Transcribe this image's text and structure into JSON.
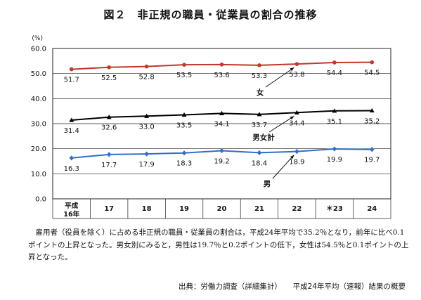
{
  "title": "図２　非正規の職員・従業員の割合の推移",
  "chart_data": {
    "type": "line",
    "ylabel": "(%)",
    "ylim": [
      0,
      60
    ],
    "yticks": [
      "0.0",
      "10.0",
      "20.0",
      "30.0",
      "40.0",
      "50.0",
      "60.0"
    ],
    "grid": true,
    "categories": [
      "平成\n16年",
      "17",
      "18",
      "19",
      "20",
      "21",
      "22",
      "＊23",
      "24"
    ],
    "series": [
      {
        "name": "女",
        "color": "#c0392b",
        "marker": "circle",
        "values": [
          51.7,
          52.5,
          52.8,
          53.5,
          53.6,
          53.3,
          53.8,
          54.4,
          54.5
        ],
        "labels": [
          "51.7",
          "52.5",
          "52.8",
          "53.5",
          "53.6",
          "53.3",
          "53.8",
          "54.4",
          "54.5"
        ]
      },
      {
        "name": "男女計",
        "color": "#000000",
        "marker": "triangle",
        "values": [
          31.4,
          32.6,
          33.0,
          33.5,
          34.1,
          33.7,
          34.4,
          35.1,
          35.2
        ],
        "labels": [
          "31.4",
          "32.6",
          "33.0",
          "33.5",
          "34.1",
          "33.7",
          "34.4",
          "35.1",
          "35.2"
        ]
      },
      {
        "name": "男",
        "color": "#2f6fc9",
        "marker": "diamond",
        "values": [
          16.3,
          17.7,
          17.9,
          18.3,
          19.2,
          18.4,
          18.9,
          19.9,
          19.7
        ],
        "labels": [
          "16.3",
          "17.7",
          "17.9",
          "18.3",
          "19.2",
          "18.4",
          "18.9",
          "19.9",
          "19.7"
        ]
      }
    ]
  },
  "caption": "雇用者（役員を除く）に占める非正規の職員・従業員の割合は，平成24年平均で35.2％となり，前年に比べ0.1ポイントの上昇となった。男女別にみると，男性は19.7％と0.2ポイントの低下，女性は54.5％と0.1ポイントの上昇となった。",
  "source": "出典：労働力調査（詳細集計）　　平成24年平均（速報）結果の概要"
}
